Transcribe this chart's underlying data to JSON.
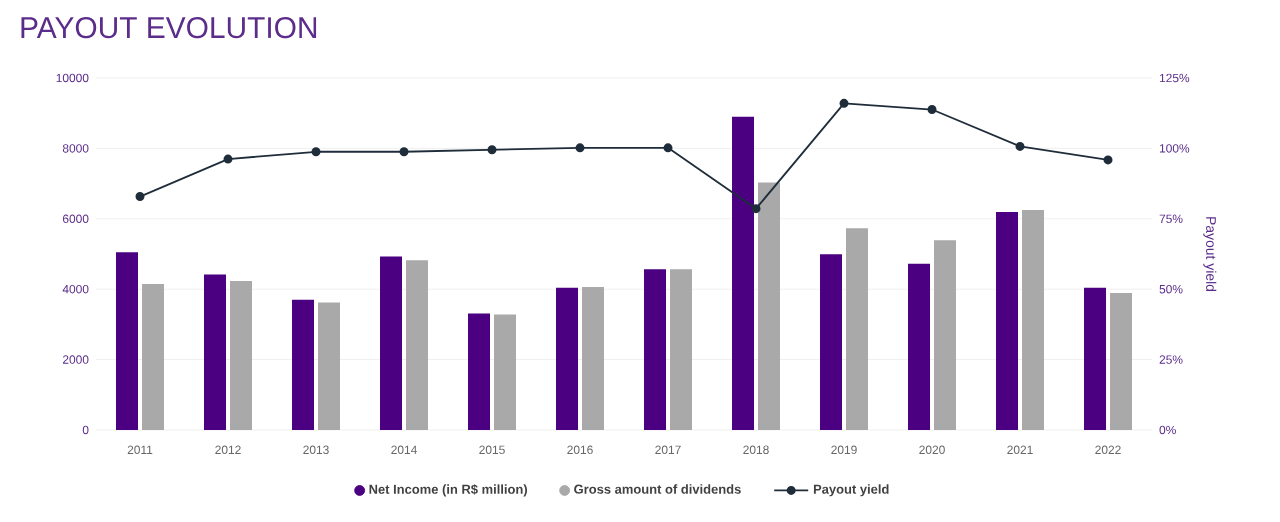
{
  "chart_data": {
    "type": "bar",
    "title": "PAYOUT EVOLUTION",
    "categories": [
      "2011",
      "2012",
      "2013",
      "2014",
      "2015",
      "2016",
      "2017",
      "2018",
      "2019",
      "2020",
      "2021",
      "2022"
    ],
    "series": [
      {
        "name": "Net Income (in R$ million)",
        "color": "#4b0082",
        "values": [
          5050,
          4420,
          3700,
          4930,
          3310,
          4040,
          4570,
          8900,
          4990,
          4720,
          6190,
          4040
        ]
      },
      {
        "name": "Gross amount of dividends",
        "color": "#a9a9a9",
        "values": [
          4150,
          4230,
          3620,
          4820,
          3280,
          4060,
          4570,
          7030,
          5730,
          5390,
          6250,
          3890
        ]
      },
      {
        "name": "Payout yield",
        "type": "line",
        "axis": "y2",
        "color": "#1f2d3a",
        "marker": "circle",
        "values": [
          82.9,
          96.2,
          98.8,
          98.8,
          99.5,
          100.2,
          100.2,
          78.6,
          116,
          113.8,
          100.7,
          95.9
        ]
      }
    ],
    "ylim": [
      0,
      10000
    ],
    "yticks": [
      0,
      2000,
      4000,
      6000,
      8000,
      10000
    ],
    "y2label": "Payout yield",
    "y2lim": [
      0,
      125
    ],
    "y2ticks": [
      {
        "value": 0,
        "label": "0%"
      },
      {
        "value": 25,
        "label": "25%"
      },
      {
        "value": 50,
        "label": "50%"
      },
      {
        "value": 75,
        "label": "75%"
      },
      {
        "value": 100,
        "label": "100%"
      },
      {
        "value": 125,
        "label": "125%"
      }
    ],
    "grid": "y",
    "legend": "bottom"
  }
}
